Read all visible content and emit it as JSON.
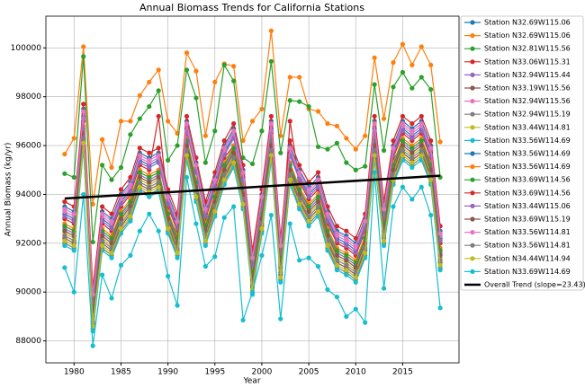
{
  "chart_data": {
    "type": "line",
    "title": "Annual Biomass Trends for California Stations",
    "x_label": "Year",
    "y_label": "Annual Biomass (kg/yr)",
    "x": [
      1979,
      1980,
      1981,
      1982,
      1983,
      1984,
      1985,
      1986,
      1987,
      1988,
      1989,
      1990,
      1991,
      1992,
      1993,
      1994,
      1995,
      1996,
      1997,
      1998,
      1999,
      2000,
      2001,
      2002,
      2003,
      2004,
      2005,
      2006,
      2007,
      2008,
      2009,
      2010,
      2011,
      2012,
      2013,
      2014,
      2015,
      2016,
      2017,
      2018,
      2019
    ],
    "xlim": [
      1977,
      2021
    ],
    "xticks": [
      1980,
      1985,
      1990,
      1995,
      2000,
      2005,
      2010,
      2015
    ],
    "ylim": [
      87100,
      101300
    ],
    "yticks": [
      88000,
      90000,
      92000,
      94000,
      96000,
      98000,
      100000
    ],
    "grid": true,
    "legend": "outside right",
    "series": [
      {
        "name": "Station N32.69W115.06",
        "color": "#1f77b4",
        "values": [
          93200,
          93000,
          97200,
          89700,
          93000,
          92700,
          93700,
          94200,
          95400,
          95200,
          95400,
          93700,
          92700,
          96700,
          95000,
          93200,
          94400,
          95700,
          96400,
          94700,
          91200,
          93700,
          96700,
          91700,
          95700,
          94700,
          94000,
          94400,
          93000,
          92200,
          92000,
          91700,
          92700,
          96700,
          93200,
          95700,
          96700,
          96400,
          96700,
          95700,
          92200
        ]
      },
      {
        "name": "Station N32.69W115.06",
        "color": "#ff7f0e",
        "values": [
          95650,
          96300,
          100050,
          93600,
          96250,
          95100,
          97000,
          97000,
          98050,
          98600,
          99100,
          97000,
          96500,
          99800,
          99050,
          96400,
          98600,
          99350,
          99250,
          96200,
          97000,
          97500,
          100700,
          96400,
          98800,
          98800,
          97500,
          97400,
          96900,
          96800,
          96300,
          95850,
          96400,
          99600,
          97100,
          99400,
          100150,
          99300,
          100050,
          99300,
          96150
        ]
      },
      {
        "name": "Station N32.81W115.56",
        "color": "#2ca02c",
        "values": [
          94850,
          94700,
          99650,
          92050,
          95200,
          94600,
          95100,
          96450,
          97100,
          97600,
          98250,
          95400,
          96000,
          99100,
          97950,
          95300,
          96600,
          99300,
          98650,
          95500,
          95250,
          96600,
          99450,
          95700,
          97850,
          97800,
          97600,
          95950,
          95850,
          96100,
          95300,
          95000,
          95150,
          98500,
          95800,
          98400,
          99000,
          98350,
          98800,
          98300,
          94700
        ]
      },
      {
        "name": "Station N33.06W115.31",
        "color": "#d62728",
        "values": [
          93000,
          92800,
          97000,
          89500,
          92800,
          92500,
          93500,
          94000,
          95200,
          95000,
          97200,
          93500,
          92500,
          96500,
          95200,
          93000,
          94200,
          95500,
          96000,
          94500,
          91000,
          93500,
          96500,
          91500,
          97000,
          94500,
          93800,
          94200,
          92800,
          92000,
          91800,
          91500,
          92500,
          96500,
          93000,
          95500,
          96500,
          96200,
          96500,
          95500,
          92000
        ]
      },
      {
        "name": "Station N32.94W115.44",
        "color": "#9467bd",
        "values": [
          92600,
          92400,
          96600,
          89100,
          92400,
          92100,
          93100,
          93600,
          94800,
          94600,
          94800,
          93100,
          92100,
          96100,
          94400,
          92600,
          93800,
          95100,
          95800,
          94100,
          90600,
          93100,
          96100,
          91100,
          95100,
          94100,
          93400,
          93800,
          92400,
          91600,
          91400,
          91100,
          92100,
          96100,
          92600,
          95100,
          96100,
          95800,
          96100,
          95100,
          91600
        ]
      },
      {
        "name": "Station N33.19W115.56",
        "color": "#8c564b",
        "values": [
          92200,
          92000,
          96200,
          88700,
          92000,
          91700,
          92700,
          93200,
          94400,
          94200,
          94400,
          92700,
          91700,
          95700,
          94000,
          92200,
          93400,
          94700,
          95400,
          93700,
          90200,
          92700,
          95700,
          90700,
          94700,
          93700,
          93000,
          93400,
          92000,
          91200,
          91000,
          90700,
          91700,
          95700,
          92200,
          94700,
          95700,
          95400,
          95700,
          94700,
          91200
        ]
      },
      {
        "name": "Station N32.94W115.56",
        "color": "#e377c2",
        "values": [
          93300,
          93100,
          97300,
          89800,
          93100,
          92800,
          93800,
          94300,
          95500,
          95300,
          95500,
          93800,
          92800,
          96800,
          95100,
          93300,
          94500,
          95800,
          96500,
          94800,
          91300,
          93800,
          96800,
          91800,
          95800,
          94800,
          94100,
          94500,
          93100,
          92300,
          92100,
          91800,
          92800,
          96800,
          93300,
          95800,
          96800,
          96500,
          96800,
          95800,
          92300
        ]
      },
      {
        "name": "Station N32.94W115.19",
        "color": "#7f7f7f",
        "values": [
          92000,
          91800,
          96000,
          88500,
          91800,
          91500,
          92500,
          93000,
          94200,
          94000,
          94200,
          92500,
          91500,
          95500,
          93800,
          92000,
          93200,
          94500,
          95200,
          93500,
          90000,
          92500,
          95500,
          90500,
          94500,
          93500,
          92800,
          93200,
          91800,
          91000,
          90800,
          90500,
          91500,
          95500,
          92000,
          94500,
          95500,
          95200,
          95500,
          94500,
          91000
        ]
      },
      {
        "name": "Station N33.44W114.81",
        "color": "#bcbd22",
        "values": [
          92400,
          92200,
          96400,
          88900,
          92200,
          91900,
          92900,
          93400,
          94600,
          94400,
          94600,
          92900,
          91900,
          95900,
          94200,
          92400,
          93600,
          94900,
          95600,
          93900,
          90400,
          92900,
          95900,
          90900,
          94900,
          93900,
          93200,
          93600,
          92200,
          91400,
          91200,
          90900,
          91900,
          95900,
          92400,
          94900,
          95900,
          95600,
          95900,
          94900,
          91400
        ]
      },
      {
        "name": "Station N33.56W114.69",
        "color": "#17becf",
        "values": [
          91900,
          91700,
          95900,
          88400,
          91700,
          91400,
          92400,
          92900,
          94100,
          93900,
          94100,
          92400,
          91400,
          95400,
          93700,
          91900,
          93100,
          94400,
          95100,
          93400,
          89900,
          92400,
          95400,
          90400,
          94400,
          93400,
          92700,
          93100,
          91700,
          90900,
          90700,
          90400,
          91400,
          95400,
          91900,
          94400,
          95400,
          95100,
          95400,
          94400,
          90900
        ]
      },
      {
        "name": "Station N33.56W114.69",
        "color": "#1f77b4",
        "values": [
          93500,
          93300,
          97500,
          90000,
          93300,
          93000,
          94000,
          94500,
          95700,
          95500,
          95700,
          94000,
          93000,
          97000,
          95300,
          93500,
          94700,
          96000,
          96700,
          95000,
          91500,
          94000,
          97000,
          92000,
          96000,
          95000,
          94300,
          94700,
          93300,
          92500,
          92300,
          92000,
          93000,
          97000,
          93500,
          96000,
          97000,
          96700,
          97000,
          96000,
          92500
        ]
      },
      {
        "name": "Station N33.56W114.69",
        "color": "#ff7f0e",
        "values": [
          92800,
          92600,
          96800,
          89300,
          92600,
          92300,
          93300,
          93800,
          95000,
          94800,
          95000,
          93300,
          92300,
          96300,
          94600,
          92800,
          94000,
          95300,
          96000,
          94300,
          90800,
          93300,
          96300,
          91300,
          95300,
          94300,
          93600,
          94000,
          92600,
          91800,
          91600,
          91300,
          92300,
          96300,
          92800,
          95300,
          96300,
          96000,
          96300,
          95300,
          91800
        ]
      },
      {
        "name": "Station N33.69W114.56",
        "color": "#2ca02c",
        "values": [
          92700,
          92500,
          96700,
          89200,
          92500,
          92200,
          93200,
          93700,
          94900,
          94700,
          94900,
          93200,
          92200,
          96200,
          94500,
          92700,
          93900,
          95200,
          95900,
          94200,
          90700,
          93200,
          96200,
          91200,
          95200,
          94200,
          93500,
          93900,
          92500,
          91700,
          91500,
          91200,
          92200,
          96200,
          92700,
          95200,
          96200,
          95900,
          96200,
          95200,
          91700
        ]
      },
      {
        "name": "Station N33.69W114.56",
        "color": "#d62728",
        "values": [
          93700,
          93500,
          97700,
          90200,
          93500,
          93200,
          94200,
          94700,
          95900,
          95700,
          95900,
          94200,
          93200,
          97200,
          95500,
          93700,
          94900,
          96200,
          96900,
          95200,
          91700,
          94200,
          97200,
          92200,
          96200,
          95200,
          94500,
          94900,
          93500,
          92700,
          92500,
          92200,
          93200,
          97200,
          93700,
          96200,
          97200,
          96900,
          97200,
          96200,
          92700
        ]
      },
      {
        "name": "Station N33.44W115.06",
        "color": "#9467bd",
        "values": [
          93100,
          92900,
          97100,
          89600,
          92900,
          92600,
          93600,
          94100,
          95300,
          95100,
          95300,
          93600,
          92600,
          96600,
          94900,
          93100,
          94300,
          95600,
          96300,
          94600,
          91100,
          93600,
          96600,
          91600,
          95600,
          94600,
          93900,
          94300,
          92900,
          92100,
          91900,
          91600,
          92600,
          96600,
          93100,
          95600,
          96600,
          96300,
          96600,
          95600,
          92100
        ]
      },
      {
        "name": "Station N33.69W115.19",
        "color": "#8c564b",
        "values": [
          92500,
          92300,
          96500,
          89000,
          92300,
          92000,
          93000,
          93500,
          94700,
          94500,
          94700,
          93000,
          92000,
          96000,
          94300,
          92500,
          93700,
          95000,
          95700,
          94000,
          90500,
          93000,
          96000,
          91000,
          95000,
          94000,
          93300,
          93700,
          92300,
          91500,
          91300,
          91000,
          92000,
          96000,
          92500,
          95000,
          96000,
          95700,
          96000,
          95000,
          91500
        ]
      },
      {
        "name": "Station N33.56W114.81",
        "color": "#e377c2",
        "values": [
          93400,
          93200,
          97400,
          89900,
          93200,
          92900,
          93900,
          94400,
          95600,
          95400,
          95600,
          93900,
          92900,
          96900,
          95200,
          93400,
          94600,
          95900,
          96600,
          94900,
          91400,
          93900,
          96900,
          91900,
          95900,
          94900,
          94200,
          94600,
          93200,
          92400,
          92200,
          91900,
          92900,
          96900,
          93400,
          95900,
          96900,
          96600,
          96900,
          95900,
          92400
        ]
      },
      {
        "name": "Station N33.56W114.81",
        "color": "#7f7f7f",
        "values": [
          92300,
          92100,
          96300,
          88800,
          92100,
          91800,
          92800,
          93300,
          94500,
          94300,
          94500,
          92800,
          91800,
          95800,
          94100,
          92300,
          93500,
          94800,
          95500,
          93800,
          90300,
          92800,
          95800,
          90800,
          94800,
          93800,
          93100,
          93500,
          92100,
          91300,
          91100,
          90800,
          91800,
          95800,
          92300,
          94800,
          95800,
          95500,
          95800,
          94800,
          91300
        ]
      },
      {
        "name": "Station N34.44W114.94",
        "color": "#bcbd22",
        "values": [
          92100,
          91900,
          96100,
          88600,
          91900,
          91600,
          92600,
          93100,
          94300,
          94100,
          94300,
          92600,
          91600,
          95600,
          93900,
          92100,
          93300,
          94600,
          95300,
          93600,
          90100,
          92600,
          95600,
          90600,
          94600,
          93600,
          92900,
          93300,
          91900,
          91100,
          90900,
          90600,
          91600,
          95600,
          92100,
          94600,
          95600,
          95300,
          95600,
          94600,
          91100
        ]
      },
      {
        "name": "Station N33.69W114.69",
        "color": "#17becf",
        "values": [
          91000,
          90000,
          94000,
          87800,
          90700,
          89750,
          91100,
          91500,
          92500,
          93200,
          92500,
          90650,
          89450,
          94700,
          92800,
          91050,
          91450,
          93050,
          93500,
          88850,
          90000,
          91500,
          93150,
          88900,
          92800,
          91300,
          91400,
          91050,
          90100,
          89800,
          89000,
          89300,
          88750,
          94900,
          90150,
          93500,
          94300,
          93800,
          94300,
          93150,
          89350
        ]
      },
      {
        "name": "Overall Trend (slope=23.43)",
        "color": "#000000",
        "x": [
          1979,
          2019
        ],
        "values": [
          93830,
          94767
        ]
      }
    ]
  }
}
